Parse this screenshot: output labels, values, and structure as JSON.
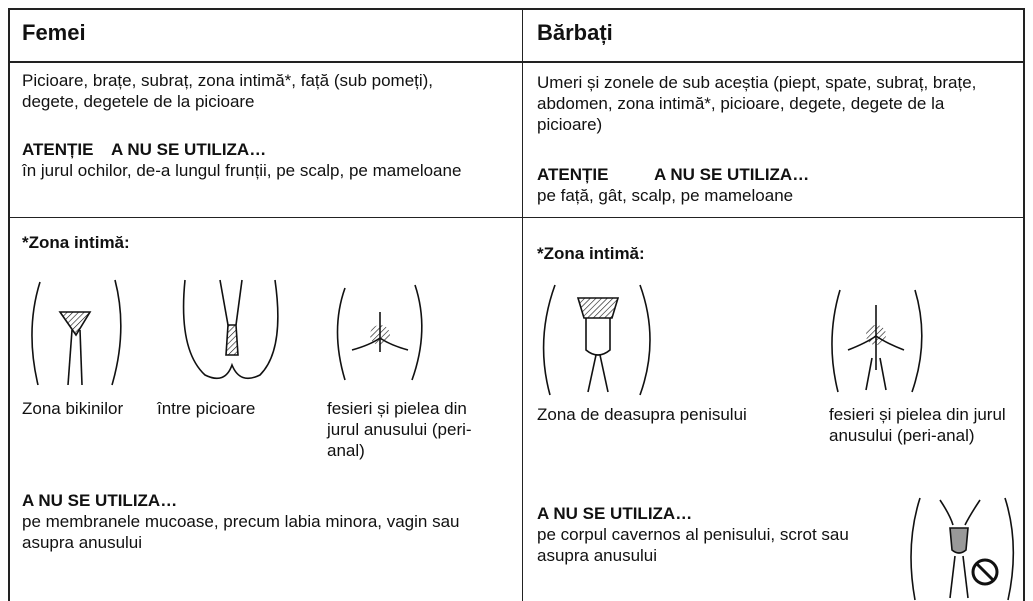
{
  "columns": [
    {
      "heading": "Femei",
      "areas": "Picioare, brațe, subraț, zona intimă*, față (sub pomeți), degete, degetele de la picioare",
      "warning_label": "ATENȚIE",
      "warning_title": "A NU SE UTILIZA…",
      "warning_text": "în jurul ochilor, de-a lungul frunții, pe scalp, pe mameloane",
      "intimate_title": "*Zona intimă:",
      "figures": [
        {
          "caption": "Zona bikinilor"
        },
        {
          "caption": "între picioare"
        },
        {
          "caption": "fesieri și pielea din jurul anusului (peri-anal)"
        }
      ],
      "restriction_title": "A NU SE UTILIZA…",
      "restriction_text": "pe membranele mucoase, precum labia minora, vagin sau asupra anusului"
    },
    {
      "heading": "Bărbați",
      "areas": "Umeri și zonele de sub aceștia (piept, spate, subraț, brațe, abdomen, zona intimă*, picioare, degete, degete de la picioare)",
      "warning_label": "ATENȚIE",
      "warning_title": "A NU SE UTILIZA…",
      "warning_text": "pe față, gât, scalp, pe mameloane",
      "intimate_title": "*Zona intimă:",
      "figures": [
        {
          "caption": "Zona de deasupra penisului"
        },
        {
          "caption": "fesieri și pielea din jurul anusului (peri-anal)"
        }
      ],
      "restriction_title": "A NU SE UTILIZA…",
      "restriction_text": "pe corpul cavernos al penisului, scrot sau asupra anusului"
    }
  ]
}
